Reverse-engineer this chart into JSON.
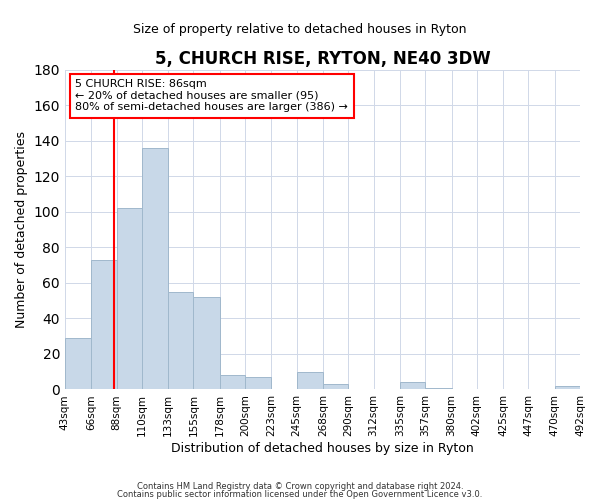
{
  "title": "5, CHURCH RISE, RYTON, NE40 3DW",
  "subtitle": "Size of property relative to detached houses in Ryton",
  "xlabel": "Distribution of detached houses by size in Ryton",
  "ylabel": "Number of detached properties",
  "footnote1": "Contains HM Land Registry data © Crown copyright and database right 2024.",
  "footnote2": "Contains public sector information licensed under the Open Government Licence v3.0.",
  "bin_labels": [
    "43sqm",
    "66sqm",
    "88sqm",
    "110sqm",
    "133sqm",
    "155sqm",
    "178sqm",
    "200sqm",
    "223sqm",
    "245sqm",
    "268sqm",
    "290sqm",
    "312sqm",
    "335sqm",
    "357sqm",
    "380sqm",
    "402sqm",
    "425sqm",
    "447sqm",
    "470sqm",
    "492sqm"
  ],
  "bar_values": [
    29,
    73,
    102,
    136,
    55,
    52,
    8,
    7,
    0,
    10,
    3,
    0,
    0,
    4,
    1,
    0,
    0,
    0,
    0,
    2
  ],
  "bar_color": "#c8d8e8",
  "bar_edge_color": "#a0b8cc",
  "vline_x": 86,
  "vline_color": "red",
  "ylim": [
    0,
    180
  ],
  "yticks": [
    0,
    20,
    40,
    60,
    80,
    100,
    120,
    140,
    160,
    180
  ],
  "annotation_title": "5 CHURCH RISE: 86sqm",
  "annotation_line1": "← 20% of detached houses are smaller (95)",
  "annotation_line2": "80% of semi-detached houses are larger (386) →",
  "bin_edges": [
    43,
    66,
    88,
    110,
    133,
    155,
    178,
    200,
    223,
    245,
    268,
    290,
    312,
    335,
    357,
    380,
    402,
    425,
    447,
    470,
    492
  ]
}
